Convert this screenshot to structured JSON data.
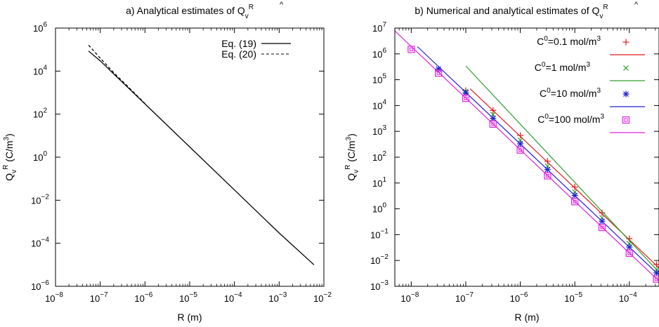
{
  "figure": {
    "charts": [
      {
        "id": "a",
        "title_prefix": "a) Analytical estimates of ",
        "quantity_symbol": "Q",
        "quantity_sub": "v",
        "quantity_sup": "R",
        "xlabel": "R (m)",
        "ylabel_unit": " (C/m",
        "ylabel_unit_sup": "3",
        "ylabel_unit_close": ")",
        "legend_position": "top-right",
        "legend": [
          "Eq. (19)",
          "Eq. (20)"
        ]
      },
      {
        "id": "b",
        "title_prefix": "b) Numerical and analytical estimates of ",
        "quantity_symbol": "Q",
        "quantity_sub": "v",
        "quantity_sup": "R",
        "xlabel": "R (m)",
        "ylabel_unit": " (C/m",
        "ylabel_unit_sup": "3",
        "ylabel_unit_close": ")",
        "legend_position": "top-right",
        "legend_entries": [
          {
            "c_symbol": "C",
            "c_sup": "0",
            "value": "=0.1 mol/m",
            "unit_sup": "3"
          },
          {
            "c_symbol": "C",
            "c_sup": "0",
            "value": "=1 mol/m",
            "unit_sup": "3"
          },
          {
            "c_symbol": "C",
            "c_sup": "0",
            "value": "=10 mol/m",
            "unit_sup": "3"
          },
          {
            "c_symbol": "C",
            "c_sup": "0",
            "value": "=100 mol/m",
            "unit_sup": "3"
          }
        ]
      }
    ]
  },
  "chart_data": [
    {
      "type": "line",
      "xscale": "log",
      "yscale": "log",
      "xlim": [
        1e-08,
        0.01
      ],
      "ylim": [
        1e-06,
        1000000.0
      ],
      "xticks": [
        1e-08,
        1e-07,
        1e-06,
        1e-05,
        0.0001,
        0.001,
        0.01
      ],
      "yticks": [
        1e-06,
        0.0001,
        0.01,
        1.0,
        100.0,
        10000.0,
        1000000.0
      ],
      "xtick_labels": [
        {
          "base": "10",
          "exp": "−8"
        },
        {
          "base": "10",
          "exp": "−7"
        },
        {
          "base": "10",
          "exp": "−6"
        },
        {
          "base": "10",
          "exp": "−5"
        },
        {
          "base": "10",
          "exp": "−4"
        },
        {
          "base": "10",
          "exp": "−3"
        },
        {
          "base": "10",
          "exp": "−2"
        }
      ],
      "ytick_labels": [
        {
          "base": "10",
          "exp": "−6"
        },
        {
          "base": "10",
          "exp": "−4"
        },
        {
          "base": "10",
          "exp": "−2"
        },
        {
          "base": "10",
          "exp": "0"
        },
        {
          "base": "10",
          "exp": "2"
        },
        {
          "base": "10",
          "exp": "4"
        },
        {
          "base": "10",
          "exp": "6"
        }
      ],
      "grid": false,
      "series": [
        {
          "name": "Eq. (19)",
          "color": "#000000",
          "dash": "solid",
          "x": [
            5.5e-08,
            1e-07,
            2e-07,
            5e-07,
            1e-06,
            1e-05,
            0.0001,
            0.001,
            0.006
          ],
          "y": [
            85000.0,
            30000.0,
            7400.0,
            1200.0,
            300.0,
            3.0,
            0.03,
            0.0003,
            1e-05
          ]
        },
        {
          "name": "Eq. (20)",
          "color": "#000000",
          "dash": "dashed",
          "x": [
            5.5e-08,
            1e-07,
            2e-07,
            5e-07,
            1e-06
          ],
          "y": [
            160000.0,
            40000.0,
            8500.0,
            1300.0,
            310.0
          ]
        }
      ]
    },
    {
      "type": "scatter",
      "xscale": "log",
      "yscale": "log",
      "xlim": [
        5e-09,
        0.00035
      ],
      "ylim": [
        0.001,
        10000000.0
      ],
      "xticks": [
        1e-08,
        1e-07,
        1e-06,
        1e-05,
        0.0001
      ],
      "yticks": [
        0.001,
        0.01,
        0.1,
        1.0,
        10.0,
        100.0,
        1000.0,
        10000.0,
        100000.0,
        1000000.0,
        10000000.0
      ],
      "xtick_labels": [
        {
          "base": "10",
          "exp": "−8"
        },
        {
          "base": "10",
          "exp": "−7"
        },
        {
          "base": "10",
          "exp": "−6"
        },
        {
          "base": "10",
          "exp": "−5"
        },
        {
          "base": "10",
          "exp": "−4"
        }
      ],
      "ytick_labels": [
        {
          "base": "10",
          "exp": "−3"
        },
        {
          "base": "10",
          "exp": "−2"
        },
        {
          "base": "10",
          "exp": "−1"
        },
        {
          "base": "10",
          "exp": "0"
        },
        {
          "base": "10",
          "exp": "1"
        },
        {
          "base": "10",
          "exp": "2"
        },
        {
          "base": "10",
          "exp": "3"
        },
        {
          "base": "10",
          "exp": "4"
        },
        {
          "base": "10",
          "exp": "5"
        },
        {
          "base": "10",
          "exp": "6"
        },
        {
          "base": "10",
          "exp": "7"
        }
      ],
      "grid": false,
      "series": [
        {
          "color": "#e41a1c",
          "marker": "plus",
          "points": {
            "x": [
              1e-07,
              3.16e-07,
              1e-06,
              3.16e-06,
              1e-05,
              3.16e-05,
              0.0001,
              0.000316
            ],
            "y": [
              38000.0,
              6500.0,
              700.0,
              70.0,
              7.0,
              0.7,
              0.07,
              0.007
            ]
          },
          "line": {
            "x": [
              1.2e-07,
              0.00035
            ],
            "y": [
              45000.0,
              0.0052
            ]
          }
        },
        {
          "color": "#2ca02c",
          "marker": "cross",
          "points": {
            "x": [
              1e-07,
              3.16e-07,
              1e-06,
              3.16e-06,
              1e-05,
              3.16e-05,
              0.0001,
              0.000316
            ],
            "y": [
              35000.0,
              4500.0,
              450.0,
              45.0,
              4.5,
              0.45,
              0.045,
              0.0045
            ]
          },
          "line": {
            "x": [
              1e-07,
              0.00035
            ],
            "y": [
              340000.0,
              0.0035
            ]
          }
        },
        {
          "color": "#1f1fd4",
          "marker": "star",
          "points": {
            "x": [
              3.16e-08,
              1e-07,
              3.16e-07,
              1e-06,
              3.16e-06,
              1e-05,
              3.16e-05,
              0.0001,
              0.000316
            ],
            "y": [
              260000.0,
              31000.0,
              3200.0,
              330.0,
              33.0,
              3.3,
              0.33,
              0.033,
              0.0033
            ]
          },
          "line": {
            "x": [
              1.3e-08,
              0.00035
            ],
            "y": [
              1900000.0,
              0.0027
            ]
          }
        },
        {
          "color": "#e020e0",
          "marker": "square",
          "points": {
            "x": [
              1e-08,
              3.16e-08,
              1e-07,
              3.16e-07,
              1e-06,
              3.16e-06,
              1e-05,
              3.16e-05,
              0.0001,
              0.000316
            ],
            "y": [
              1500000.0,
              180000.0,
              19000.0,
              1900.0,
              190.0,
              19.0,
              1.9,
              0.19,
              0.019,
              0.0019
            ]
          },
          "line": {
            "x": [
              5e-09,
              0.00035
            ],
            "y": [
              7800000.0,
              0.0016
            ]
          }
        }
      ]
    }
  ]
}
